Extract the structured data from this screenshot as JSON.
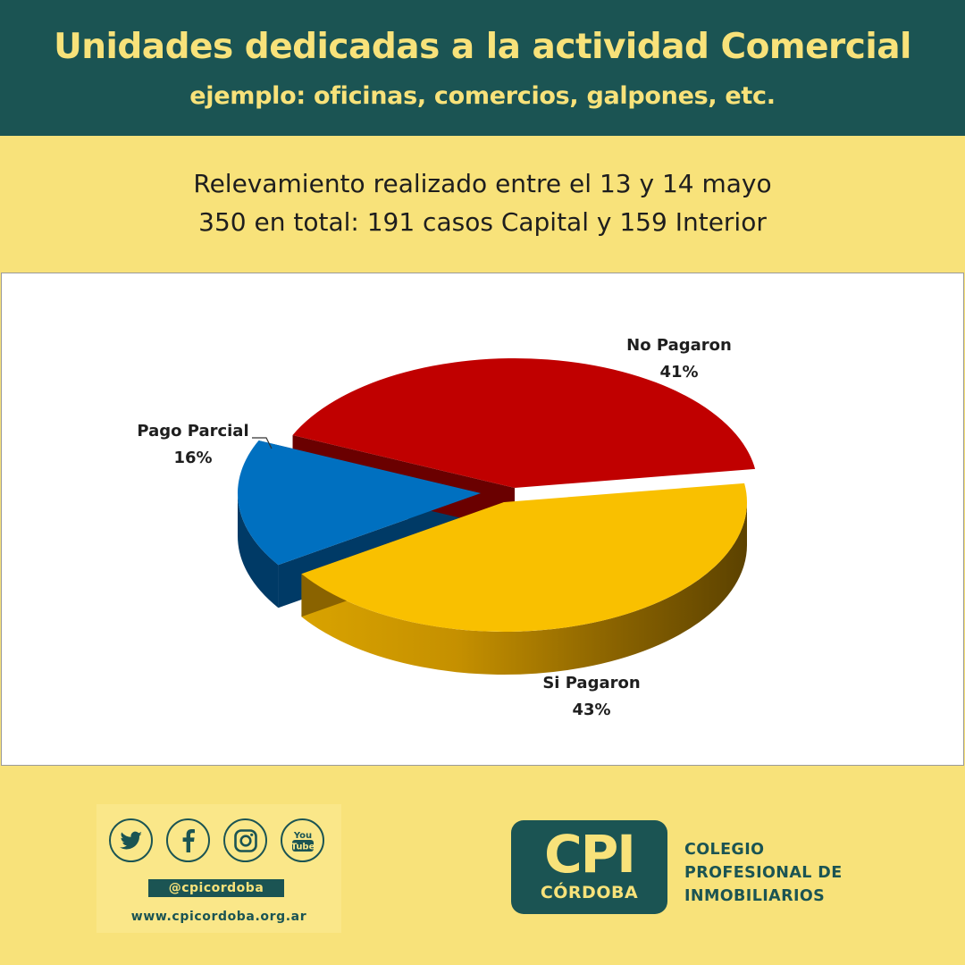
{
  "header": {
    "title": "Unidades dedicadas a la actividad Comercial",
    "subtitle": "ejemplo: oficinas, comercios, galpones, etc."
  },
  "survey": {
    "line1": "Relevamiento realizado entre el 13 y 14 mayo",
    "line2": "350 en total: 191 casos Capital y 159 Interior"
  },
  "chart_data": {
    "type": "pie",
    "three_d": true,
    "slices": [
      {
        "label": "No Pagaron",
        "value": 41,
        "display": "41%",
        "color": "#c00000",
        "side": "#6a0000"
      },
      {
        "label": "Si Pagaron",
        "value": 43,
        "display": "43%",
        "color": "#f9c000",
        "side": "#8a6300"
      },
      {
        "label": "Pago Parcial",
        "value": 16,
        "display": "16%",
        "color": "#0070c0",
        "side": "#003a66"
      }
    ]
  },
  "social": {
    "icons": [
      "twitter-icon",
      "facebook-icon",
      "instagram-icon",
      "youtube-icon"
    ],
    "youtube_text_top": "You",
    "youtube_text_bottom": "Tube",
    "handle": "@cpicordoba",
    "website": "www.cpicordoba.org.ar"
  },
  "logo": {
    "acronym": "CPI",
    "city": "CÓRDOBA",
    "name_line1": "COLEGIO",
    "name_line2": "PROFESIONAL DE",
    "name_line3": "INMOBILIARIOS"
  },
  "colors": {
    "header_bg": "#1b5453",
    "accent_yellow": "#f8e27a"
  }
}
